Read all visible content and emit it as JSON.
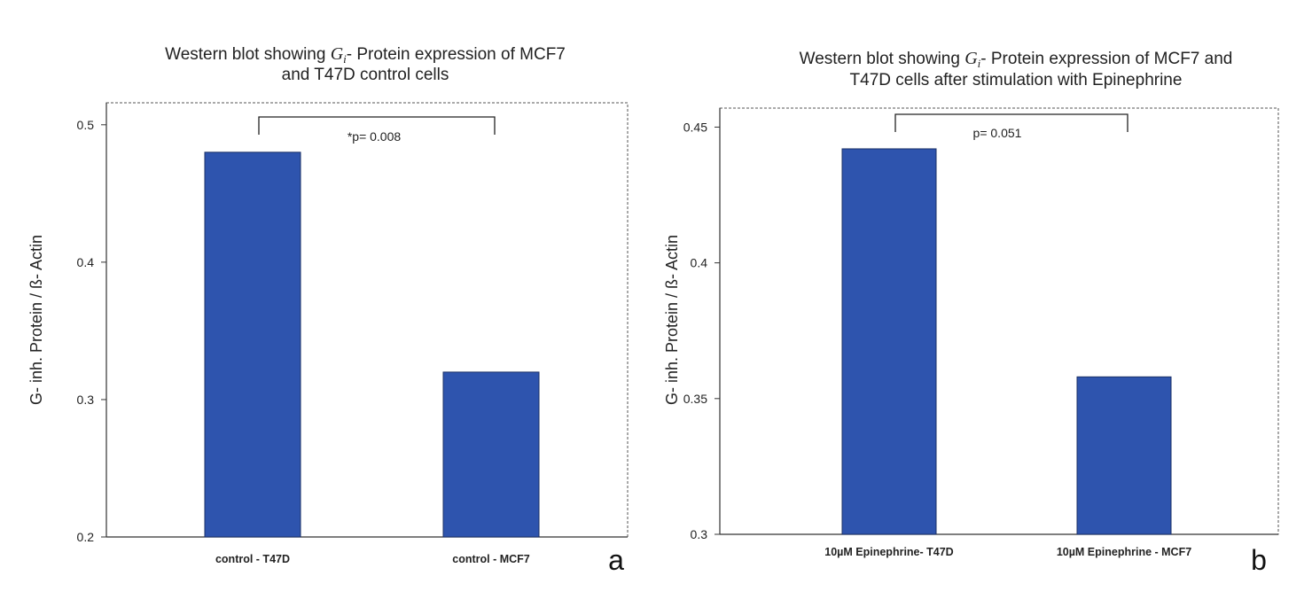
{
  "colors": {
    "bar": "#2E54AE",
    "bar_edge": "#1a2f66",
    "axis": "#333333"
  },
  "chart_data": [
    {
      "type": "bar",
      "panel_label": "a",
      "title_line1_pre": "Western blot showing ",
      "title_symbol": "G",
      "title_symbol_sub": "i",
      "title_line1_post": "- Protein expression of MCF7",
      "title_line2": "and T47D control cells",
      "ylabel": "G- inh. Protein / ß- Actin",
      "xlabel": "",
      "categories": [
        "control - T47D",
        "control - MCF7"
      ],
      "values": [
        0.48,
        0.32
      ],
      "ylim": [
        0.2,
        0.516
      ],
      "yticks": [
        0.2,
        0.3,
        0.4,
        0.5
      ],
      "ytick_labels": [
        "0.2",
        "0.3",
        "0.4",
        "0.5"
      ],
      "significance": {
        "label": "*p= 0.008",
        "between": [
          0,
          1
        ],
        "y": 0.505
      }
    },
    {
      "type": "bar",
      "panel_label": "b",
      "title_line1_pre": "Western blot showing ",
      "title_symbol": "G",
      "title_symbol_sub": "i",
      "title_line1_post": "- Protein expression of MCF7 and",
      "title_line2": "T47D cells after stimulation with Epinephrine",
      "ylabel": "G- inh. Protein / ß- Actin",
      "xlabel": "",
      "categories": [
        "10µM Epinephrine- T47D",
        "10µM Epinephrine - MCF7"
      ],
      "values": [
        0.442,
        0.358
      ],
      "ylim": [
        0.3,
        0.457
      ],
      "yticks": [
        0.3,
        0.35,
        0.4,
        0.45
      ],
      "ytick_labels": [
        "0.3",
        "0.35",
        "0.4",
        "0.45"
      ],
      "significance": {
        "label": "p= 0.051",
        "between": [
          0,
          1
        ],
        "y": 0.4525
      }
    }
  ]
}
